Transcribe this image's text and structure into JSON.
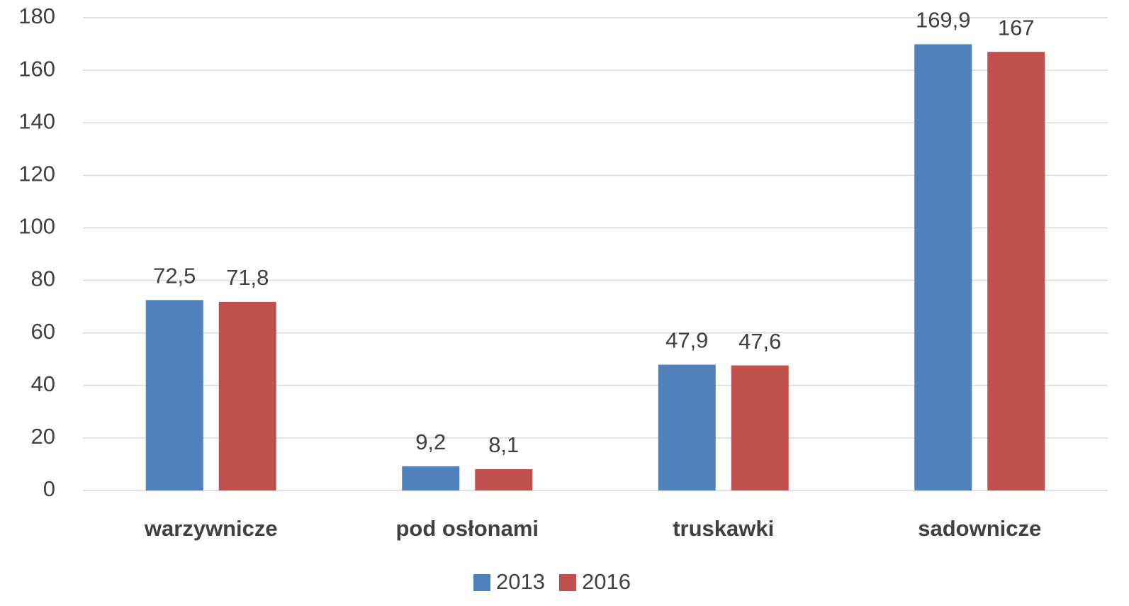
{
  "chart_data": {
    "type": "bar",
    "categories": [
      "warzywnicze",
      "pod osłonami",
      "truskawki",
      "sadownicze"
    ],
    "series": [
      {
        "name": "2013",
        "color": "#4f81bd",
        "values": [
          72.5,
          9.2,
          47.9,
          169.9
        ],
        "value_labels": [
          "72,5",
          "9,2",
          "47,9",
          "169,9"
        ]
      },
      {
        "name": "2016",
        "color": "#c0504d",
        "values": [
          71.8,
          8.1,
          47.6,
          167
        ],
        "value_labels": [
          "71,8",
          "8,1",
          "47,6",
          "167"
        ]
      }
    ],
    "ylim": [
      0,
      180
    ],
    "yticks": [
      0,
      20,
      40,
      60,
      80,
      100,
      120,
      140,
      160,
      180
    ],
    "grid": true,
    "legend": "bottom"
  }
}
